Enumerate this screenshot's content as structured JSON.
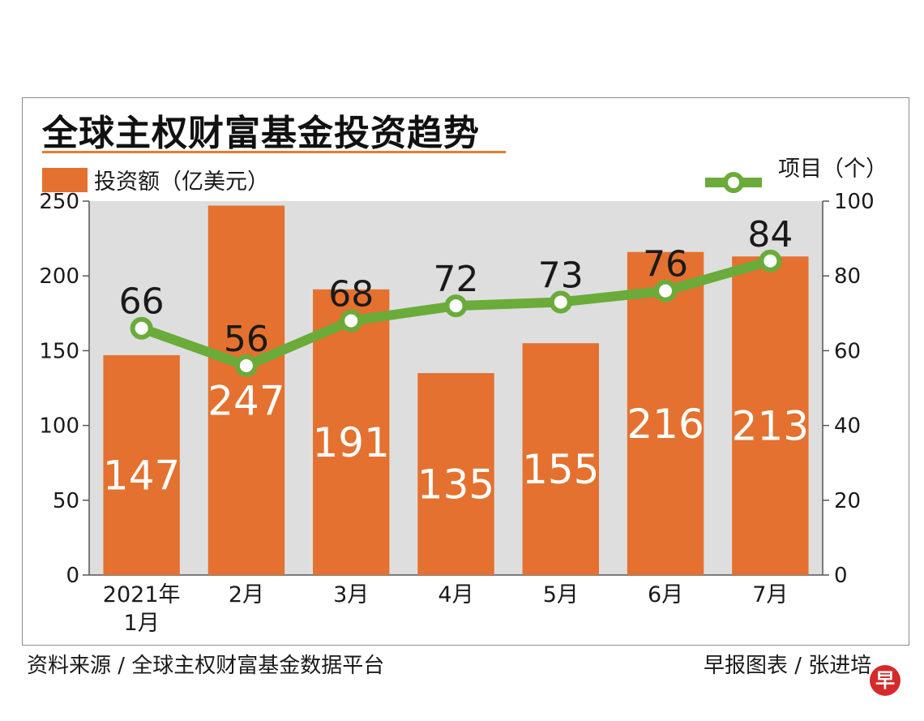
{
  "title": "全球主权财富基金投资趋势",
  "source": "资料来源 / 全球主权财富基金数据平台",
  "credit": "早报图表 / 张进培",
  "badge": "早",
  "colors": {
    "bar": "#e4712f",
    "line": "#6aab3a",
    "plot_background": "#dedede",
    "title_underline": "#e87a2e"
  },
  "chart_data": {
    "type": "bar",
    "categories": [
      "2021年\n1月",
      "2月",
      "3月",
      "4月",
      "5月",
      "6月",
      "7月"
    ],
    "series": [
      {
        "name": "投资额（亿美元）",
        "type": "bar",
        "axis": "left",
        "values": [
          147,
          247,
          191,
          135,
          155,
          216,
          213
        ]
      },
      {
        "name": "项目（个）",
        "type": "line",
        "axis": "right",
        "values": [
          66,
          56,
          68,
          72,
          73,
          76,
          84
        ]
      }
    ],
    "y_left": {
      "lim": [
        0,
        250
      ],
      "ticks": [
        0,
        50,
        100,
        150,
        200,
        250
      ]
    },
    "y_right": {
      "lim": [
        0,
        100
      ],
      "ticks": [
        0,
        20,
        40,
        60,
        80,
        100
      ]
    },
    "grid": false,
    "legend": "top"
  }
}
